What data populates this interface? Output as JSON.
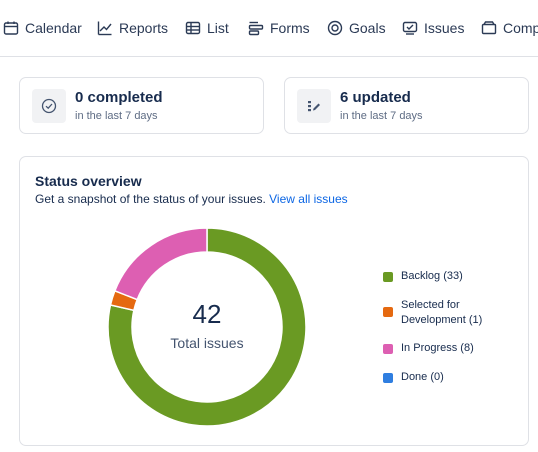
{
  "nav": {
    "items": [
      {
        "label": "Calendar",
        "icon": "calendar-icon"
      },
      {
        "label": "Reports",
        "icon": "chart-line-icon"
      },
      {
        "label": "List",
        "icon": "table-list-icon"
      },
      {
        "label": "Forms",
        "icon": "forms-icon"
      },
      {
        "label": "Goals",
        "icon": "target-icon"
      },
      {
        "label": "Issues",
        "icon": "issues-icon"
      },
      {
        "label": "Components",
        "icon": "components-icon"
      }
    ]
  },
  "stats": {
    "completed": {
      "title": "0 completed",
      "subtitle": "in the last 7 days",
      "icon": "check-circle-icon"
    },
    "updated": {
      "title": "6 updated",
      "subtitle": "in the last 7 days",
      "icon": "edit-icon"
    }
  },
  "status_overview": {
    "title": "Status overview",
    "description": "Get a snapshot of the status of your issues.",
    "link": "View all issues",
    "total": "42",
    "total_label": "Total issues"
  },
  "chart_data": {
    "type": "pie",
    "donut": true,
    "categories": [
      "Backlog",
      "Selected for Development",
      "In Progress",
      "Done"
    ],
    "values": [
      33,
      1,
      8,
      0
    ],
    "labels": [
      "Backlog (33)",
      "Selected for Development (1)",
      "In Progress (8)",
      "Done (0)"
    ],
    "colors": [
      "#6a9a23",
      "#e56910",
      "#dd5fb2",
      "#2f7ee0"
    ],
    "legend_position": "right"
  }
}
